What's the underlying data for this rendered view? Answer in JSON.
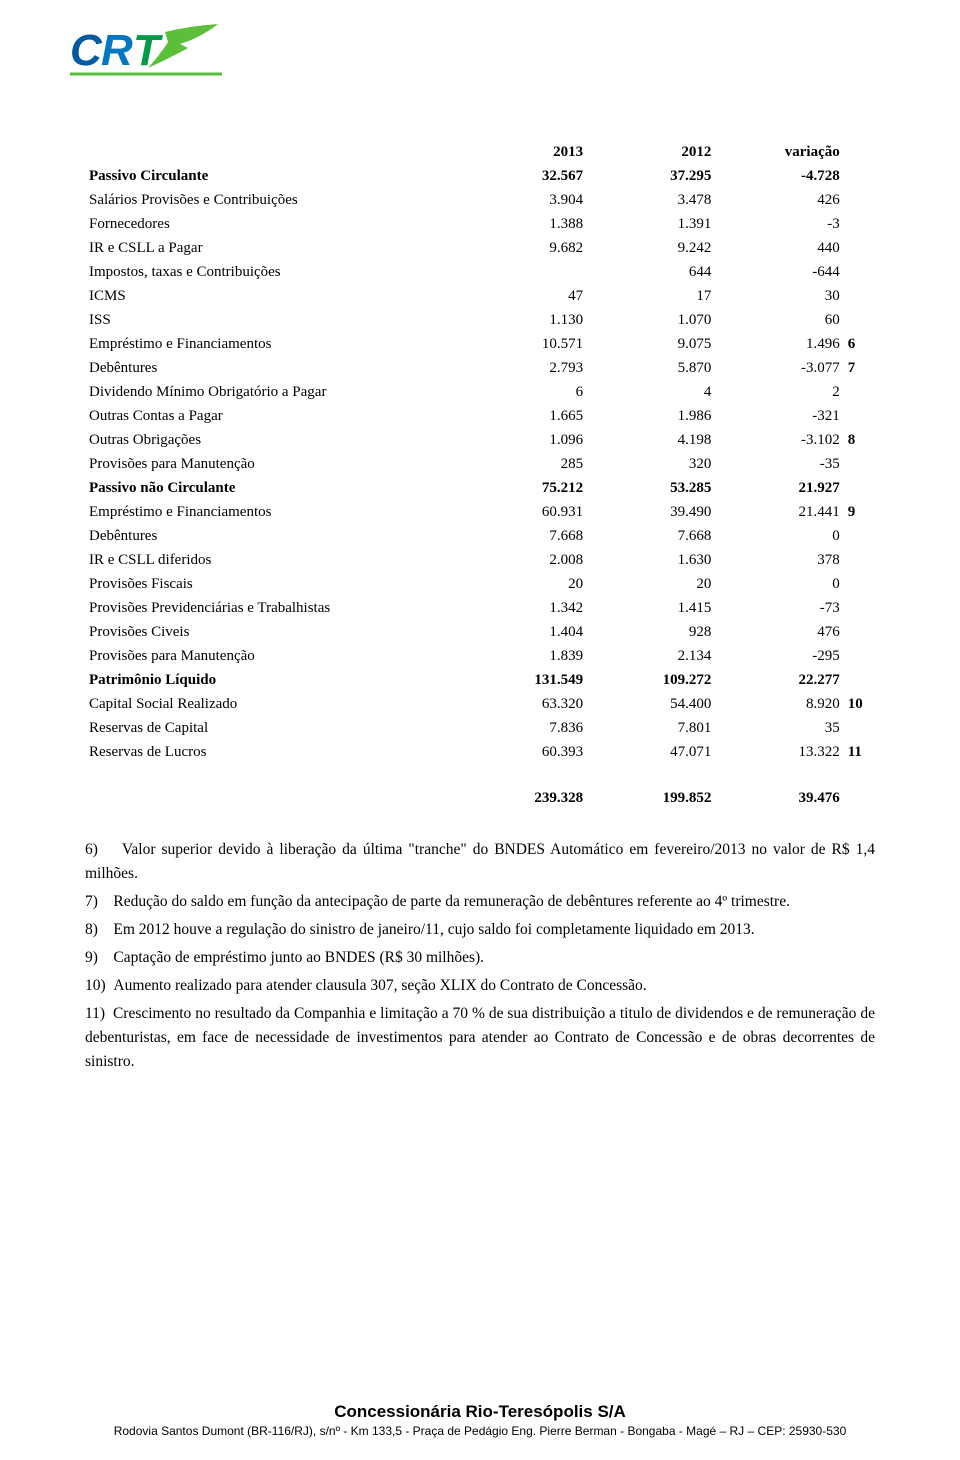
{
  "logo": {
    "text_main": "CRT",
    "color_c": "#005aa0",
    "color_r": "#0077c0",
    "color_t": "#009a49",
    "accent_color": "#5bbf3a",
    "width": 155,
    "height": 62,
    "font_family": "Arial, Helvetica, sans-serif"
  },
  "table": {
    "header": {
      "label": "",
      "c1": "2013",
      "c2": "2012",
      "c3": "variação"
    },
    "rows": [
      {
        "label": "Passivo Circulante",
        "c1": "32.567",
        "c2": "37.295",
        "c3": "-4.728",
        "note": "",
        "bold": true
      },
      {
        "label": "Salários Provisões e Contribuições",
        "c1": "3.904",
        "c2": "3.478",
        "c3": "426",
        "note": ""
      },
      {
        "label": "Fornecedores",
        "c1": "1.388",
        "c2": "1.391",
        "c3": "-3",
        "note": ""
      },
      {
        "label": "IR e CSLL a Pagar",
        "c1": "9.682",
        "c2": "9.242",
        "c3": "440",
        "note": ""
      },
      {
        "label": "Impostos, taxas e Contribuições",
        "c1": "",
        "c2": "644",
        "c3": "-644",
        "note": ""
      },
      {
        "label": "ICMS",
        "c1": "47",
        "c2": "17",
        "c3": "30",
        "note": ""
      },
      {
        "label": "ISS",
        "c1": "1.130",
        "c2": "1.070",
        "c3": "60",
        "note": ""
      },
      {
        "label": "Empréstimo e Financiamentos",
        "c1": "10.571",
        "c2": "9.075",
        "c3": "1.496",
        "note": "6"
      },
      {
        "label": "Debêntures",
        "c1": "2.793",
        "c2": "5.870",
        "c3": "-3.077",
        "note": "7"
      },
      {
        "label": "Dividendo Mínimo Obrigatório a Pagar",
        "c1": "6",
        "c2": "4",
        "c3": "2",
        "note": ""
      },
      {
        "label": "Outras Contas a Pagar",
        "c1": "1.665",
        "c2": "1.986",
        "c3": "-321",
        "note": ""
      },
      {
        "label": "Outras Obrigações",
        "c1": "1.096",
        "c2": "4.198",
        "c3": "-3.102",
        "note": "8"
      },
      {
        "label": "Provisões para Manutenção",
        "c1": "285",
        "c2": "320",
        "c3": "-35",
        "note": ""
      },
      {
        "label": "Passivo não Circulante",
        "c1": "75.212",
        "c2": "53.285",
        "c3": "21.927",
        "note": "",
        "bold": true
      },
      {
        "label": "Empréstimo e Financiamentos",
        "c1": "60.931",
        "c2": "39.490",
        "c3": "21.441",
        "note": "9"
      },
      {
        "label": "Debêntures",
        "c1": "7.668",
        "c2": "7.668",
        "c3": "0",
        "note": ""
      },
      {
        "label": "IR e CSLL diferidos",
        "c1": "2.008",
        "c2": "1.630",
        "c3": "378",
        "note": ""
      },
      {
        "label": "Provisões Fiscais",
        "c1": "20",
        "c2": "20",
        "c3": "0",
        "note": ""
      },
      {
        "label": "Provisões Previdenciárias e Trabalhistas",
        "c1": "1.342",
        "c2": "1.415",
        "c3": "-73",
        "note": ""
      },
      {
        "label": "Provisões Civeis",
        "c1": "1.404",
        "c2": "928",
        "c3": "476",
        "note": ""
      },
      {
        "label": "Provisões para Manutenção",
        "c1": "1.839",
        "c2": "2.134",
        "c3": "-295",
        "note": ""
      },
      {
        "label": "Patrimônio Líquido",
        "c1": "131.549",
        "c2": "109.272",
        "c3": "22.277",
        "note": "",
        "bold": true
      },
      {
        "label": "Capital Social Realizado",
        "c1": "63.320",
        "c2": "54.400",
        "c3": "8.920",
        "note": "10"
      },
      {
        "label": "Reservas de Capital",
        "c1": "7.836",
        "c2": "7.801",
        "c3": "35",
        "note": ""
      },
      {
        "label": "Reservas de Lucros",
        "c1": "60.393",
        "c2": "47.071",
        "c3": "13.322",
        "note": "11"
      }
    ],
    "total": {
      "label": "",
      "c1": "239.328",
      "c2": "199.852",
      "c3": "39.476"
    }
  },
  "notes": [
    "6)    Valor superior devido à liberação da última \"tranche\" do BNDES Automático em fevereiro/2013 no valor de R$ 1,4 milhões.",
    "7)    Redução do saldo em função da antecipação de parte da remuneração de debêntures referente ao 4º trimestre.",
    "8)    Em 2012 houve a regulação do sinistro de janeiro/11, cujo saldo foi completamente liquidado em 2013.",
    "9)    Captação de empréstimo junto ao BNDES (R$ 30 milhões).",
    "10)  Aumento realizado para atender clausula 307, seção XLIX do Contrato de Concessão.",
    "11)  Crescimento no resultado da Companhia e limitação a 70 % de sua distribuição a titulo de dividendos e de remuneração de debenturistas, em face de necessidade de investimentos para atender ao Contrato de Concessão e de obras decorrentes de sinistro."
  ],
  "footer": {
    "company": "Concessionária Rio-Teresópolis S/A",
    "address": "Rodovia Santos Dumont (BR-116/RJ), s/nº - Km 133,5 - Praça de Pedágio Eng. Pierre Berman - Bongaba - Magé – RJ – CEP: 25930-530"
  }
}
